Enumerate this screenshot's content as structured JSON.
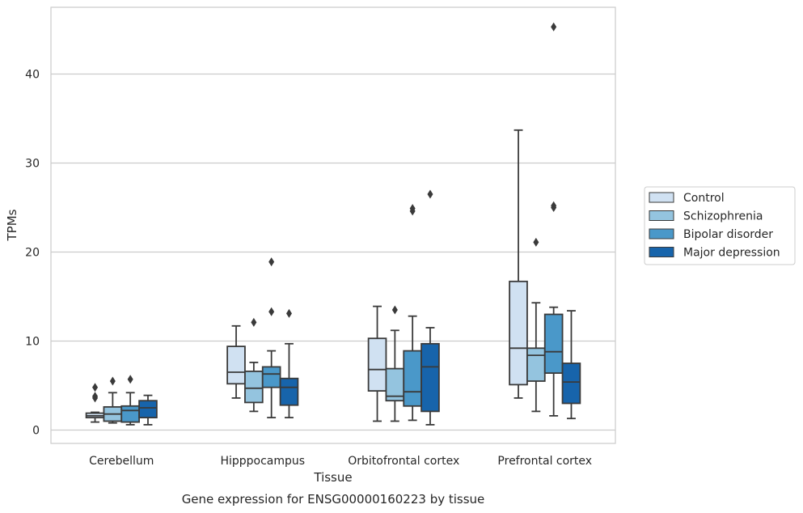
{
  "chart_data": {
    "type": "box",
    "title": "",
    "caption": "Gene expression for ENSG00000160223 by tissue",
    "xlabel": "Tissue",
    "ylabel": "TPMs",
    "ylim": [
      -1.5,
      47.5
    ],
    "yticks": [
      0,
      10,
      20,
      30,
      40
    ],
    "grid": "horizontal",
    "legend_position": "right",
    "categories": [
      "Cerebellum",
      "Hipppocampus",
      "Orbitofrontal cortex",
      "Prefrontal cortex"
    ],
    "series": [
      {
        "name": "Control",
        "color": "#d0e1f2",
        "boxes": [
          {
            "whislo": 0.9,
            "q1": 1.4,
            "med": 1.6,
            "q3": 1.9,
            "whishi": 2.0,
            "fliers": [
              3.6,
              3.8,
              4.8
            ]
          },
          {
            "whislo": 3.6,
            "q1": 5.2,
            "med": 6.5,
            "q3": 9.4,
            "whishi": 11.7,
            "fliers": []
          },
          {
            "whislo": 1.0,
            "q1": 4.4,
            "med": 6.8,
            "q3": 10.3,
            "whishi": 13.9,
            "fliers": []
          },
          {
            "whislo": 3.6,
            "q1": 5.1,
            "med": 9.2,
            "q3": 16.7,
            "whishi": 33.7,
            "fliers": []
          }
        ]
      },
      {
        "name": "Schizophrenia",
        "color": "#94c4df",
        "boxes": [
          {
            "whislo": 0.8,
            "q1": 1.0,
            "med": 1.8,
            "q3": 2.6,
            "whishi": 4.2,
            "fliers": [
              5.5
            ]
          },
          {
            "whislo": 2.1,
            "q1": 3.1,
            "med": 4.7,
            "q3": 6.6,
            "whishi": 7.6,
            "fliers": [
              12.1
            ]
          },
          {
            "whislo": 1.0,
            "q1": 3.3,
            "med": 3.8,
            "q3": 6.9,
            "whishi": 11.2,
            "fliers": [
              13.5
            ]
          },
          {
            "whislo": 2.1,
            "q1": 5.5,
            "med": 8.4,
            "q3": 9.2,
            "whishi": 14.3,
            "fliers": [
              21.1
            ]
          }
        ]
      },
      {
        "name": "Bipolar disorder",
        "color": "#4a98c9",
        "boxes": [
          {
            "whislo": 0.6,
            "q1": 0.9,
            "med": 2.2,
            "q3": 2.7,
            "whishi": 4.2,
            "fliers": [
              5.7
            ]
          },
          {
            "whislo": 1.4,
            "q1": 4.8,
            "med": 6.3,
            "q3": 7.1,
            "whishi": 8.9,
            "fliers": [
              13.3,
              18.9
            ]
          },
          {
            "whislo": 1.1,
            "q1": 2.7,
            "med": 4.3,
            "q3": 8.9,
            "whishi": 12.8,
            "fliers": [
              24.6,
              24.9
            ]
          },
          {
            "whislo": 1.6,
            "q1": 6.4,
            "med": 8.8,
            "q3": 13.0,
            "whishi": 13.8,
            "fliers": [
              25.0,
              25.2,
              45.3
            ]
          }
        ]
      },
      {
        "name": "Major depression",
        "color": "#1764ab",
        "boxes": [
          {
            "whislo": 0.6,
            "q1": 1.4,
            "med": 2.5,
            "q3": 3.3,
            "whishi": 3.9,
            "fliers": []
          },
          {
            "whislo": 1.4,
            "q1": 2.8,
            "med": 4.8,
            "q3": 5.8,
            "whishi": 9.7,
            "fliers": [
              13.1
            ]
          },
          {
            "whislo": 0.6,
            "q1": 2.1,
            "med": 7.1,
            "q3": 9.7,
            "whishi": 11.5,
            "fliers": [
              26.5
            ]
          },
          {
            "whislo": 1.3,
            "q1": 3.0,
            "med": 5.4,
            "q3": 7.5,
            "whishi": 13.4,
            "fliers": []
          }
        ]
      }
    ]
  }
}
